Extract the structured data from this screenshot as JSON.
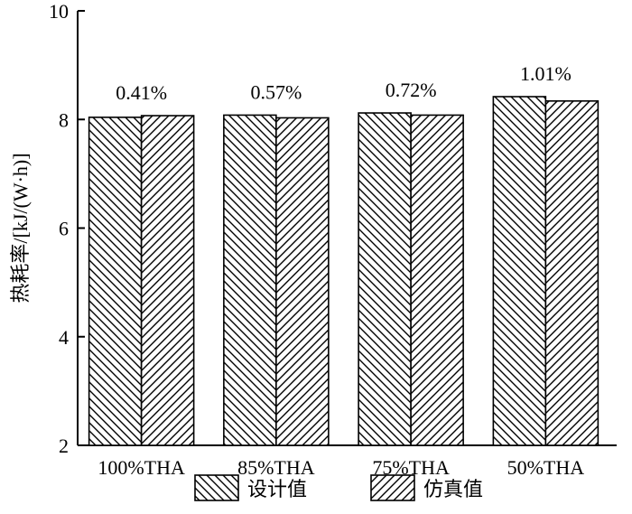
{
  "chart_data": {
    "type": "bar",
    "title": "",
    "xlabel": "",
    "ylabel": "热耗率/[kJ/(W·h)]",
    "ylim": [
      2,
      10
    ],
    "yticks": [
      2,
      4,
      6,
      8,
      10
    ],
    "categories": [
      "100%THA",
      "85%THA",
      "75%THA",
      "50%THA"
    ],
    "series": [
      {
        "name": "设计值",
        "values": [
          8.04,
          8.08,
          8.12,
          8.42
        ],
        "pattern": "back-diagonal-hatch"
      },
      {
        "name": "仿真值",
        "values": [
          8.07,
          8.03,
          8.08,
          8.34
        ],
        "pattern": "forward-diagonal-hatch"
      }
    ],
    "annotations": [
      "0.41%",
      "0.57%",
      "0.72%",
      "1.01%"
    ],
    "legend_position": "bottom-center",
    "grid": false,
    "colors": {
      "stroke": "#000000",
      "fill": "#ffffff"
    }
  }
}
